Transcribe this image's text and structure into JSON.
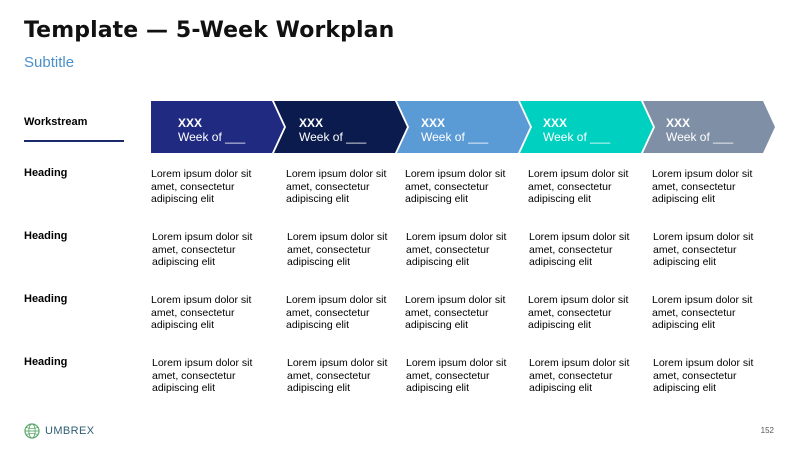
{
  "title": "Template — 5-Week Workplan",
  "subtitle": "Subtitle",
  "workstream_label": "Workstream",
  "colors": {
    "accent_navy": "#1a2a6c",
    "week1": "#1f2a80",
    "week2": "#0c1b4d",
    "week3": "#5b9bd5",
    "week4": "#00d0c0",
    "week5": "#7f8fa6",
    "subtitle": "#4a90c8"
  },
  "weeks": [
    {
      "code": "XXX",
      "label": "Week of ___"
    },
    {
      "code": "XXX",
      "label": "Week of ___"
    },
    {
      "code": "XXX",
      "label": "Week of ___"
    },
    {
      "code": "XXX",
      "label": "Week of ___"
    },
    {
      "code": "XXX",
      "label": "Week of ___"
    }
  ],
  "rows": [
    {
      "heading": "Heading",
      "cells": [
        "Lorem ipsum dolor sit amet, consectetur adipiscing elit",
        "Lorem ipsum dolor sit amet, consectetur adipiscing elit",
        "Lorem ipsum dolor sit amet, consectetur adipiscing elit",
        "Lorem ipsum dolor sit amet, consectetur adipiscing elit",
        "Lorem ipsum dolor sit amet, consectetur adipiscing elit"
      ]
    },
    {
      "heading": "Heading",
      "cells": [
        "Lorem ipsum dolor sit amet, consectetur adipiscing elit",
        "Lorem ipsum dolor sit amet, consectetur adipiscing elit",
        "Lorem ipsum dolor sit amet, consectetur adipiscing elit",
        "Lorem ipsum dolor sit amet, consectetur adipiscing elit",
        "Lorem ipsum dolor sit amet, consectetur adipiscing elit"
      ]
    },
    {
      "heading": "Heading",
      "cells": [
        "Lorem ipsum dolor sit amet, consectetur adipiscing elit",
        "Lorem ipsum dolor sit amet, consectetur adipiscing elit",
        "Lorem ipsum dolor sit amet, consectetur adipiscing elit",
        "Lorem ipsum dolor sit amet, consectetur adipiscing elit",
        "Lorem ipsum dolor sit amet, consectetur adipiscing elit"
      ]
    },
    {
      "heading": "Heading",
      "cells": [
        "Lorem ipsum dolor sit amet, consectetur adipiscing elit",
        "Lorem ipsum dolor sit amet, consectetur adipiscing elit",
        "Lorem ipsum dolor sit amet, consectetur adipiscing elit",
        "Lorem ipsum dolor sit amet, consectetur adipiscing elit",
        "Lorem ipsum dolor sit amet, consectetur adipiscing elit"
      ]
    }
  ],
  "footer": {
    "logo_text": "UMBREX",
    "logo_icon": "globe-icon",
    "page_number": "152"
  }
}
